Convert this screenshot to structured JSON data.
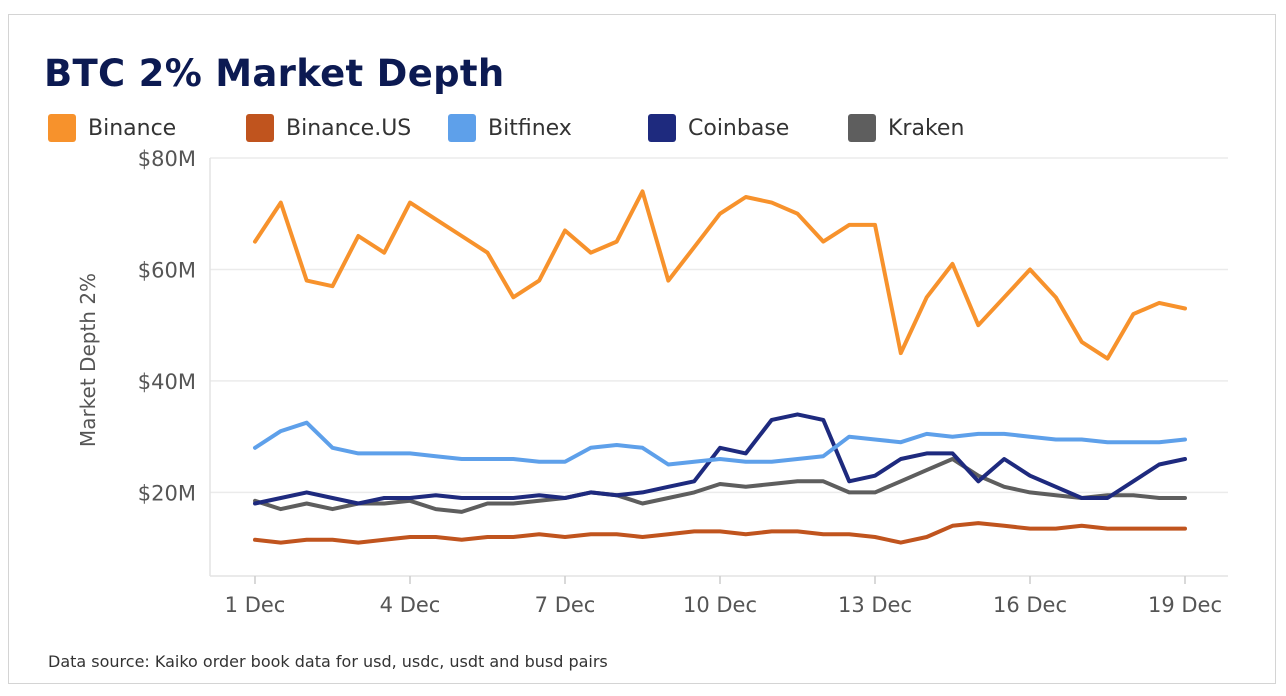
{
  "title": "BTC 2% Market Depth",
  "source": "Data source: Kaiko order book data for usd, usdc, usdt and busd pairs",
  "chart_data": {
    "type": "line",
    "title": "BTC 2% Market Depth",
    "xlabel": "",
    "ylabel": "Market Depth 2%",
    "x_ticks": [
      "1 Dec",
      "4 Dec",
      "7 Dec",
      "10 Dec",
      "13 Dec",
      "16 Dec",
      "19 Dec"
    ],
    "x_tick_days": [
      1,
      4,
      7,
      10,
      13,
      16,
      19
    ],
    "xlim": [
      1,
      19
    ],
    "y_ticks": [
      "$20M",
      "$40M",
      "$60M",
      "$80M"
    ],
    "y_tick_values": [
      20,
      40,
      60,
      80
    ],
    "ylim": [
      5,
      80
    ],
    "y_unit": "$M",
    "grid": "horizontal",
    "legend_position": "top",
    "x": [
      1.0,
      1.5,
      2.0,
      2.5,
      3.0,
      3.5,
      4.0,
      4.5,
      5.0,
      5.5,
      6.0,
      6.5,
      7.0,
      7.5,
      8.0,
      8.5,
      9.0,
      9.5,
      10.0,
      10.5,
      11.0,
      11.5,
      12.0,
      12.5,
      13.0,
      13.5,
      14.0,
      14.5,
      15.0,
      15.5,
      16.0,
      16.5,
      17.0,
      17.5,
      18.0,
      18.5,
      19.0
    ],
    "series": [
      {
        "name": "Binance",
        "color": "#f7922c",
        "values": [
          65,
          72,
          58,
          57,
          66,
          63,
          72,
          69,
          66,
          63,
          55,
          58,
          67,
          63,
          65,
          74,
          58,
          64,
          70,
          73,
          72,
          70,
          65,
          68,
          68,
          45,
          55,
          61,
          50,
          55,
          60,
          55,
          47,
          44,
          52,
          54,
          53
        ]
      },
      {
        "name": "Binance.US",
        "color": "#c0541e",
        "values": [
          11.5,
          11,
          11.5,
          11.5,
          11,
          11.5,
          12,
          12,
          11.5,
          12,
          12,
          12.5,
          12,
          12.5,
          12.5,
          12,
          12.5,
          13,
          13,
          12.5,
          13,
          13,
          12.5,
          12.5,
          12,
          11,
          12,
          14,
          14.5,
          14,
          13.5,
          13.5,
          14,
          13.5,
          13.5,
          13.5,
          13.5
        ]
      },
      {
        "name": "Bitfinex",
        "color": "#5ea0ea",
        "values": [
          28,
          31,
          32.5,
          28,
          27,
          27,
          27,
          26.5,
          26,
          26,
          26,
          25.5,
          25.5,
          28,
          28.5,
          28,
          25,
          25.5,
          26,
          25.5,
          25.5,
          26,
          26.5,
          30,
          29.5,
          29,
          30.5,
          30,
          30.5,
          30.5,
          30,
          29.5,
          29.5,
          29,
          29,
          29,
          29.5
        ]
      },
      {
        "name": "Coinbase",
        "color": "#1e2a7e",
        "values": [
          18,
          19,
          20,
          19,
          18,
          19,
          19,
          19.5,
          19,
          19,
          19,
          19.5,
          19,
          20,
          19.5,
          20,
          21,
          22,
          28,
          27,
          33,
          34,
          33,
          22,
          23,
          26,
          27,
          27,
          22,
          26,
          23,
          21,
          19,
          19,
          22,
          25,
          26
        ]
      },
      {
        "name": "Kraken",
        "color": "#5e5e5e",
        "values": [
          18.5,
          17,
          18,
          17,
          18,
          18,
          18.5,
          17,
          16.5,
          18,
          18,
          18.5,
          19,
          20,
          19.5,
          18,
          19,
          20,
          21.5,
          21,
          21.5,
          22,
          22,
          20,
          20,
          22,
          24,
          26,
          23,
          21,
          20,
          19.5,
          19,
          19.5,
          19.5,
          19,
          19
        ]
      }
    ]
  }
}
